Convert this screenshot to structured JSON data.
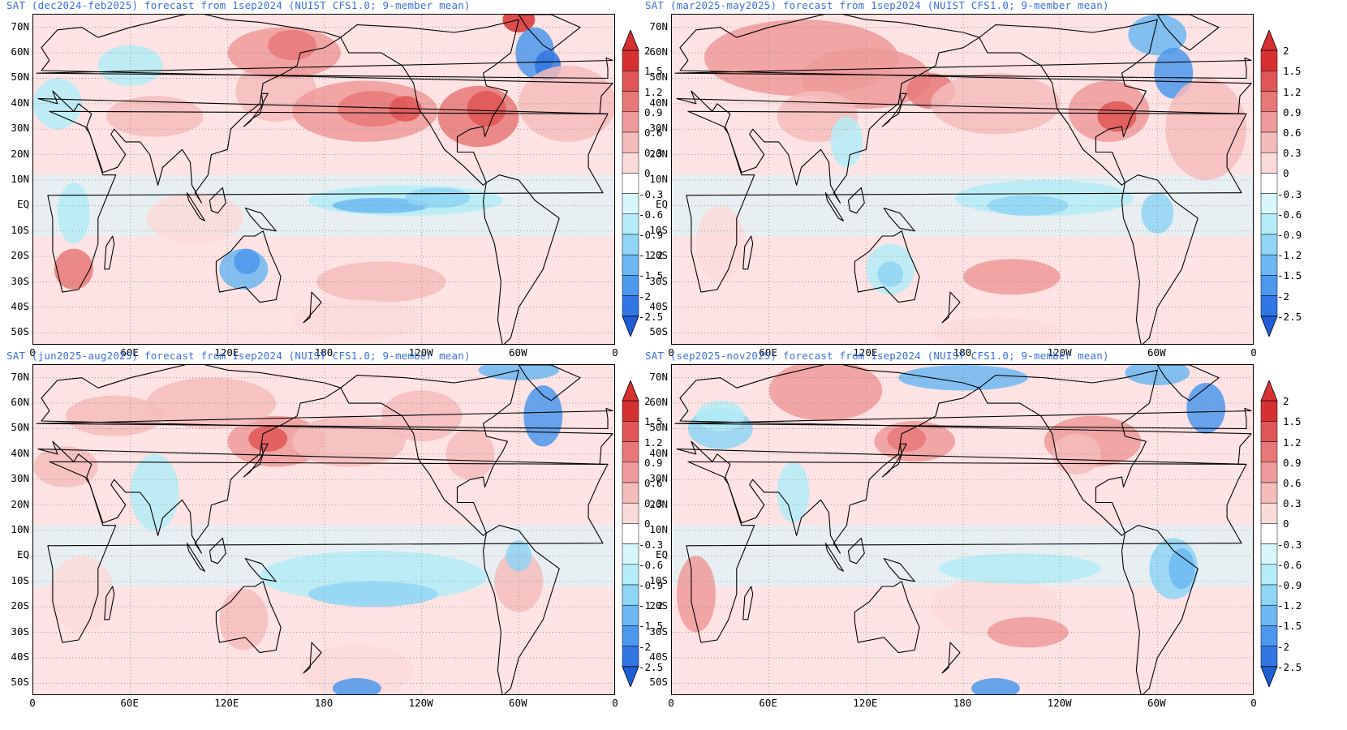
{
  "panels": [
    {
      "title": "SAT (dec2024-feb2025) forecast from 1sep2024 (NUIST CFS1.0; 9-member mean)"
    },
    {
      "title": "SAT (mar2025-may2025) forecast from 1sep2024 (NUIST CFS1.0; 9-member mean)"
    },
    {
      "title": "SAT (jun2025-aug2025) forecast from 1sep2024 (NUIST CFS1.0; 9-member mean)"
    },
    {
      "title": "SAT (sep2025-nov2025) forecast from 1sep2024 (NUIST CFS1.0; 9-member mean)"
    }
  ],
  "lat_labels": [
    "70N",
    "60N",
    "50N",
    "40N",
    "30N",
    "20N",
    "10N",
    "EQ",
    "10S",
    "20S",
    "30S",
    "40S",
    "50S"
  ],
  "lon_labels": [
    "0",
    "60E",
    "120E",
    "180",
    "120W",
    "60W",
    "0"
  ],
  "colorbar": {
    "levels": [
      "2",
      "1.5",
      "1.2",
      "0.9",
      "0.6",
      "0.3",
      "0",
      "-0.3",
      "-0.6",
      "-0.9",
      "-1.2",
      "-1.5",
      "-2",
      "-2.5"
    ],
    "colors": [
      "#d73030",
      "#e05555",
      "#e87878",
      "#ef9a9a",
      "#f5bcbc",
      "#fbdada",
      "#ffffff",
      "#d8f7fb",
      "#b4ecf7",
      "#8fd5f5",
      "#6cb8f2",
      "#4c98ec",
      "#3077e4",
      "#1e5fd8"
    ]
  },
  "colors": {
    "title": "#3b6fe0",
    "warm_base": "#fde3e3",
    "cool_base": "#d8f7fb"
  }
}
